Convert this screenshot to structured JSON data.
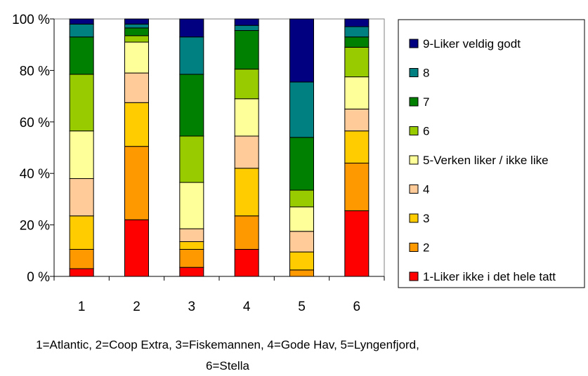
{
  "chart_data": {
    "type": "bar",
    "stacked": true,
    "categories": [
      "1",
      "2",
      "3",
      "4",
      "5",
      "6"
    ],
    "ylim": [
      0,
      100
    ],
    "yticks": [
      "0 %",
      "20 %",
      "40 %",
      "60 %",
      "80 %",
      "100 %"
    ],
    "yunit": "%",
    "grid": false,
    "legend_position": "right",
    "caption_lines": [
      "1=Atlantic, 2=Coop Extra, 3=Fiskemannen, 4=Gode Hav, 5=Lyngenfjord,",
      "6=Stella"
    ],
    "series": [
      {
        "name": "1-Liker ikke i det hele tatt",
        "color": "#ff0000",
        "values": [
          3,
          22,
          3.5,
          10.5,
          0,
          25.5
        ]
      },
      {
        "name": "2",
        "color": "#ff9900",
        "values": [
          7.5,
          28.5,
          7,
          13,
          2.5,
          18.5
        ]
      },
      {
        "name": "3",
        "color": "#ffcc00",
        "values": [
          13,
          17,
          3,
          18.5,
          7,
          12.5
        ]
      },
      {
        "name": "4",
        "color": "#ffcc99",
        "values": [
          14.5,
          11.5,
          5,
          12.5,
          8,
          8.5
        ]
      },
      {
        "name": "5-Verken liker / ikke like",
        "color": "#ffff99",
        "values": [
          18.5,
          12,
          18,
          14.5,
          9.5,
          12.5
        ]
      },
      {
        "name": "6",
        "color": "#99cc00",
        "values": [
          22,
          2.5,
          18,
          11.5,
          6.5,
          11.5
        ]
      },
      {
        "name": "7",
        "color": "#008000",
        "values": [
          14.5,
          3,
          24,
          15,
          20.5,
          4
        ]
      },
      {
        "name": "8",
        "color": "#008080",
        "values": [
          5,
          1.5,
          14.5,
          2,
          21.5,
          4
        ]
      },
      {
        "name": "9-Liker veldig godt",
        "color": "#000080",
        "values": [
          2,
          2,
          7,
          2.5,
          24.5,
          3
        ]
      }
    ]
  }
}
